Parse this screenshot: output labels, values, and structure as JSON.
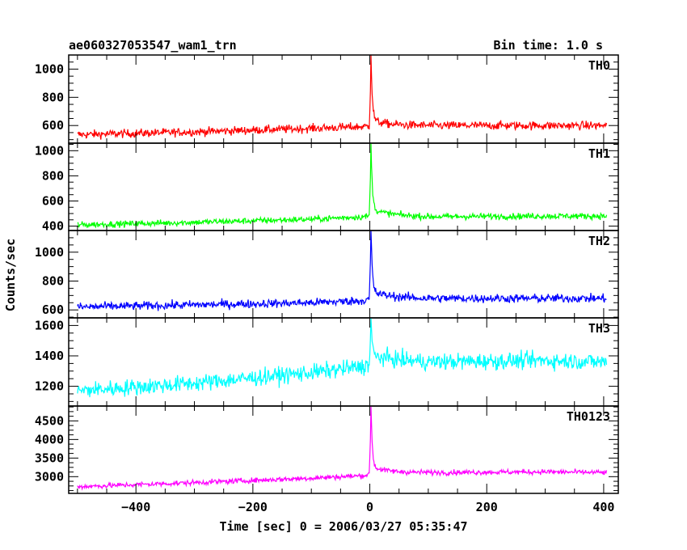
{
  "figure": {
    "title_left": "ae060327053547_wam1_trn",
    "title_right": "Bin time: 1.0 s",
    "ylabel": "Counts/sec",
    "xlabel": "Time [sec] 0 = 2006/03/27 05:35:47"
  },
  "chart_data": [
    {
      "type": "line",
      "name": "TH0",
      "color": "#ff0000",
      "xlim": [
        -515,
        425
      ],
      "ylim": [
        475,
        1100
      ],
      "yticks": [
        600,
        800,
        1000
      ],
      "baseline_x": [
        -500,
        -300,
        -100,
        -10,
        15,
        100,
        300,
        405
      ],
      "baseline_y": [
        535,
        555,
        580,
        592,
        600,
        600,
        600,
        600
      ],
      "noise_amplitude": 30,
      "burst": {
        "peak_time": 2,
        "peak": 1100
      },
      "grid": false
    },
    {
      "type": "line",
      "name": "TH1",
      "color": "#00ff00",
      "xlim": [
        -515,
        425
      ],
      "ylim": [
        365,
        1060
      ],
      "yticks": [
        400,
        600,
        800,
        1000
      ],
      "baseline_x": [
        -500,
        -300,
        -100,
        -10,
        15,
        100,
        300,
        405
      ],
      "baseline_y": [
        410,
        430,
        455,
        475,
        490,
        475,
        480,
        480
      ],
      "noise_amplitude": 25,
      "burst": {
        "peak_time": 2,
        "peak": 1060
      },
      "grid": false
    },
    {
      "type": "line",
      "name": "TH2",
      "color": "#0000ff",
      "xlim": [
        -515,
        425
      ],
      "ylim": [
        545,
        1150
      ],
      "yticks": [
        600,
        800,
        1000
      ],
      "baseline_x": [
        -500,
        -300,
        -100,
        -10,
        15,
        100,
        300,
        405
      ],
      "baseline_y": [
        620,
        635,
        650,
        665,
        690,
        680,
        680,
        680
      ],
      "noise_amplitude": 30,
      "burst": {
        "peak_time": 2,
        "peak": 1150
      },
      "grid": false
    },
    {
      "type": "line",
      "name": "TH3",
      "color": "#00ffff",
      "xlim": [
        -515,
        425
      ],
      "ylim": [
        1070,
        1650
      ],
      "yticks": [
        1200,
        1400,
        1600
      ],
      "baseline_x": [
        -500,
        -300,
        -100,
        -10,
        15,
        100,
        300,
        405
      ],
      "baseline_y": [
        1170,
        1220,
        1290,
        1330,
        1380,
        1360,
        1370,
        1360
      ],
      "noise_amplitude": 55,
      "burst": {
        "peak_time": 2,
        "peak": 1650
      },
      "grid": false
    },
    {
      "type": "line",
      "name": "TH0123",
      "color": "#ff00ff",
      "xlim": [
        -515,
        425
      ],
      "ylim": [
        2550,
        4900
      ],
      "yticks": [
        3000,
        3500,
        4000,
        4500
      ],
      "baseline_x": [
        -500,
        -300,
        -100,
        -10,
        15,
        100,
        300,
        405
      ],
      "baseline_y": [
        2730,
        2840,
        2960,
        3030,
        3120,
        3110,
        3130,
        3110
      ],
      "noise_amplitude": 70,
      "burst": {
        "peak_time": 2,
        "peak": 4900
      },
      "grid": false
    }
  ],
  "x_axis": {
    "ticks": [
      -400,
      -200,
      0,
      200,
      400
    ],
    "tick_labels": [
      "−400",
      "−200",
      "0",
      "200",
      "400"
    ],
    "minor_step": 50
  }
}
